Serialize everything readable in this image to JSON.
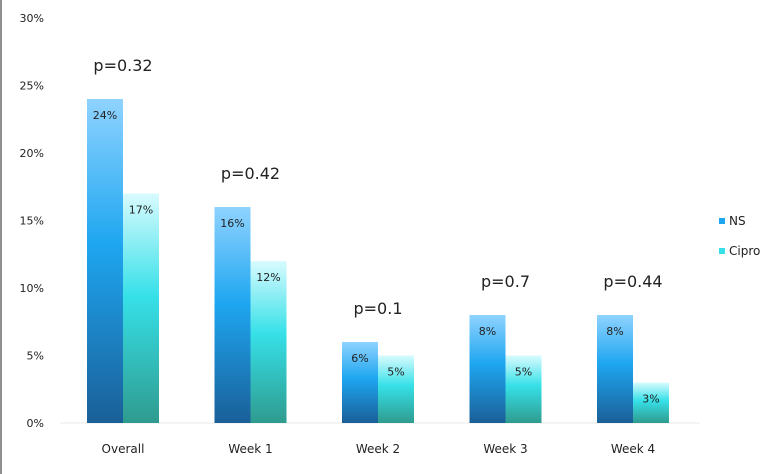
{
  "chart_data": {
    "type": "bar",
    "categories": [
      "Overall",
      "Week 1",
      "Week 2",
      "Week 3",
      "Week 4"
    ],
    "series": [
      {
        "name": "NS",
        "values": [
          24,
          16,
          6,
          8,
          8
        ],
        "labels": [
          "24%",
          "16%",
          "6%",
          "8%",
          "8%"
        ],
        "color_top": "#8fd3ff",
        "color_mid": "#1ea6f0",
        "color_bottom": "#1a5f98"
      },
      {
        "name": "Cipro",
        "values": [
          17,
          12,
          5,
          5,
          3
        ],
        "labels": [
          "17%",
          "12%",
          "5%",
          "5%",
          "3%"
        ],
        "color_top": "#d8fbff",
        "color_mid": "#36e0e8",
        "color_bottom": "#2f9b8f"
      }
    ],
    "annotations": [
      "p=0.32",
      "p=0.42",
      "p=0.1",
      "p=0.7",
      "p=0.44"
    ],
    "yticks": [
      0,
      5,
      10,
      15,
      20,
      25,
      30
    ],
    "ytick_labels": [
      "0%",
      "5%",
      "10%",
      "15%",
      "20%",
      "25%",
      "30%"
    ],
    "ylim": [
      0,
      30
    ],
    "grid": false,
    "legend": "right"
  }
}
